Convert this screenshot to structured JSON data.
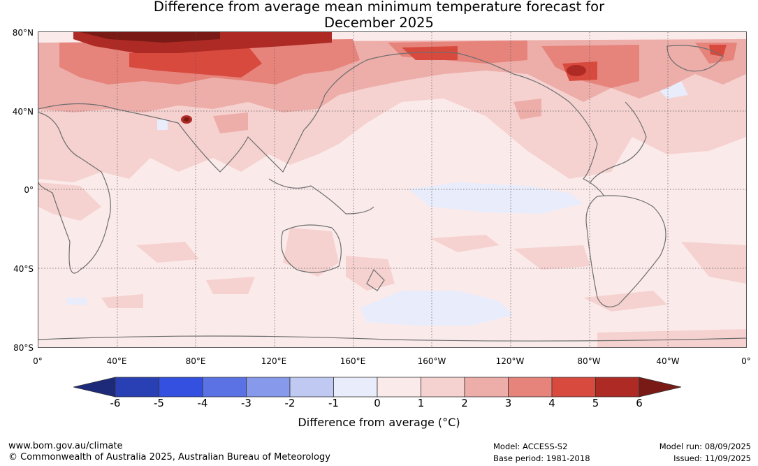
{
  "title": {
    "line1": "Difference from average mean minimum temperature forecast for",
    "line2": "December 2025"
  },
  "lat_labels": [
    "80°N",
    "40°N",
    "0°",
    "40°S",
    "80°S"
  ],
  "lon_labels": [
    "0°",
    "40°E",
    "80°E",
    "120°E",
    "160°E",
    "160°W",
    "120°W",
    "80°W",
    "40°W",
    "0°"
  ],
  "colorbar": {
    "ticks": [
      "-6",
      "-5",
      "-4",
      "-3",
      "-2",
      "-1",
      "0",
      "1",
      "2",
      "3",
      "4",
      "5",
      "6"
    ],
    "colors": [
      "#1d2a7a",
      "#2840b4",
      "#3350e0",
      "#5a72e4",
      "#8799ea",
      "#c0c9f2",
      "#e8ecfb",
      "#fbeaea",
      "#f5d2d0",
      "#edaeaa",
      "#e6847c",
      "#d84a3e",
      "#ae2a24",
      "#7a1a16"
    ],
    "label": "Difference from average (°C)"
  },
  "footer": {
    "website": "www.bom.gov.au/climate",
    "copyright": "© Commonwealth of Australia 2025, Australian Bureau of Meteorology",
    "model": "Model: ACCESS-S2",
    "base_period": "Base period: 1981-2018",
    "model_run": "Model run: 08/09/2025",
    "issued": "Issued: 11/09/2025"
  },
  "colors": {
    "background_anomaly": "#fbeaea",
    "light_warm": "#f5d2d0",
    "warm": "#edaeaa",
    "warmer": "#e6847c",
    "hot": "#d84a3e",
    "very_hot": "#ae2a24",
    "extreme": "#7a1a16",
    "cool": "#e8ecfb",
    "coastline": "#6e6e6e"
  }
}
